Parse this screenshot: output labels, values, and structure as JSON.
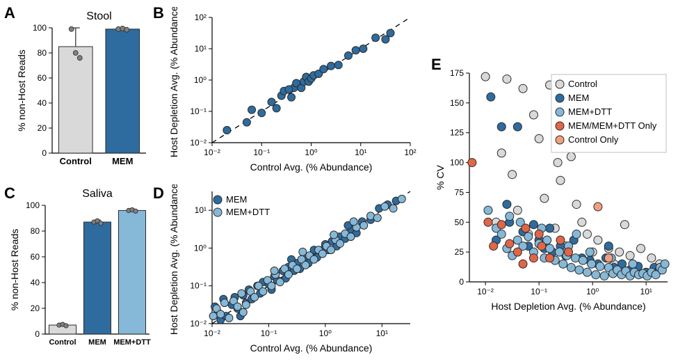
{
  "colors": {
    "control_bar": "#d9d9d9",
    "mem_bar": "#2e6b9e",
    "memdtt_bar": "#86b8d8",
    "point_edge": "#2b2b2b",
    "point_control": "#d9d9d9",
    "point_mem": "#2e6b9e",
    "point_memdtt": "#86b8d8",
    "point_memonly": "#e06647",
    "point_ctrlonly": "#f0a080",
    "errorbar": "#555555",
    "dotgrey": "#808080"
  },
  "panelA": {
    "label": "A",
    "title": "Stool",
    "ylabel": "% non-Host Reads",
    "categories": [
      "Control",
      "MEM"
    ],
    "bar_values": [
      85,
      99
    ],
    "bar_colors": [
      "#d9d9d9",
      "#2e6b9e"
    ],
    "errors": [
      15,
      0.5
    ],
    "dots": {
      "Control": [
        99,
        80,
        76
      ],
      "MEM": [
        99,
        99.5,
        98.5
      ]
    },
    "ylim": [
      0,
      100
    ],
    "ytick_step": 20,
    "cat_fontsize": 13,
    "label_fontsize": 14,
    "title_fontsize": 16
  },
  "panelB": {
    "label": "B",
    "xlabel": "Control Avg. (% Abundance)",
    "ylabel": "Host Depletion Avg. (% Abundance)",
    "xlim_log": [
      -2,
      2
    ],
    "ylim_log": [
      -2,
      2
    ],
    "ticks_log": [
      -2,
      -1,
      0,
      1,
      2
    ],
    "tick_labels": [
      "10⁻²",
      "10⁻¹",
      "10⁰",
      "10¹",
      "10²"
    ],
    "series": [
      {
        "name": "MEM",
        "color": "#2e6b9e",
        "points_log10": [
          [
            -1.7,
            -1.6
          ],
          [
            -1.3,
            -1.35
          ],
          [
            -1.2,
            -0.95
          ],
          [
            -1.0,
            -1.05
          ],
          [
            -0.8,
            -0.7
          ],
          [
            -0.6,
            -0.5
          ],
          [
            -0.55,
            -0.35
          ],
          [
            -0.4,
            -0.55
          ],
          [
            -0.35,
            -0.25
          ],
          [
            -0.3,
            -0.1
          ],
          [
            -0.2,
            -0.25
          ],
          [
            -0.15,
            -0.05
          ],
          [
            -0.1,
            0.1
          ],
          [
            -0.05,
            -0.05
          ],
          [
            0.0,
            0.05
          ],
          [
            0.05,
            0.15
          ],
          [
            0.15,
            0.2
          ],
          [
            0.25,
            0.35
          ],
          [
            0.4,
            0.45
          ],
          [
            0.55,
            0.48
          ],
          [
            0.75,
            0.78
          ],
          [
            0.9,
            0.95
          ],
          [
            1.05,
            1.0
          ],
          [
            1.3,
            1.35
          ],
          [
            1.5,
            1.3
          ],
          [
            1.6,
            1.5
          ],
          [
            -0.7,
            -0.9
          ],
          [
            -0.45,
            -0.3
          ]
        ]
      }
    ],
    "marker_radius": 5.5
  },
  "panelC": {
    "label": "C",
    "title": "Saliva",
    "ylabel": "% non-Host Reads",
    "categories": [
      "Control",
      "MEM",
      "MEM+DTT"
    ],
    "bar_values": [
      7,
      87,
      96
    ],
    "bar_colors": [
      "#d9d9d9",
      "#2e6b9e",
      "#86b8d8"
    ],
    "errors": [
      1,
      1.5,
      1
    ],
    "dots": {
      "Control": [
        7,
        7.5,
        6.5
      ],
      "MEM": [
        87,
        88,
        86
      ],
      "MEM+DTT": [
        96,
        96.5,
        95.5
      ]
    },
    "ylim": [
      0,
      100
    ],
    "ytick_step": 20,
    "cat_fontsize": 11
  },
  "panelD": {
    "label": "D",
    "xlabel": "Control Avg. (% Abundance)",
    "ylabel": "Host Depletion Avg. (% Abundance)",
    "xlim_log": [
      -2,
      1.5
    ],
    "ylim_log": [
      -2,
      1.5
    ],
    "xticks_log": [
      -2,
      -1,
      0,
      1
    ],
    "yticks_log": [
      -2,
      -1,
      0,
      1
    ],
    "tick_labels": [
      "10⁻²",
      "10⁻¹",
      "10⁰",
      "10¹"
    ],
    "legend": [
      {
        "label": "MEM",
        "color": "#2e6b9e"
      },
      {
        "label": "MEM+DTT",
        "color": "#86b8d8"
      }
    ],
    "series": [
      {
        "name": "MEM",
        "color": "#2e6b9e",
        "points_log10": [
          [
            -1.95,
            -1.55
          ],
          [
            -1.9,
            -1.7
          ],
          [
            -1.85,
            -1.9
          ],
          [
            -1.8,
            -1.35
          ],
          [
            -1.75,
            -1.8
          ],
          [
            -1.65,
            -1.5
          ],
          [
            -1.6,
            -1.3
          ],
          [
            -1.55,
            -1.6
          ],
          [
            -1.45,
            -1.25
          ],
          [
            -1.4,
            -1.45
          ],
          [
            -1.35,
            -1.1
          ],
          [
            -1.3,
            -1.35
          ],
          [
            -1.2,
            -1.0
          ],
          [
            -1.15,
            -1.2
          ],
          [
            -1.1,
            -0.9
          ],
          [
            -1.0,
            -0.95
          ],
          [
            -0.95,
            -1.1
          ],
          [
            -0.9,
            -0.75
          ],
          [
            -0.85,
            -0.85
          ],
          [
            -0.75,
            -0.6
          ],
          [
            -0.7,
            -0.8
          ],
          [
            -0.65,
            -0.5
          ],
          [
            -0.55,
            -0.6
          ],
          [
            -0.5,
            -0.4
          ],
          [
            -0.45,
            -0.55
          ],
          [
            -0.35,
            -0.25
          ],
          [
            -0.3,
            -0.4
          ],
          [
            -0.25,
            -0.2
          ],
          [
            -0.2,
            -0.05
          ],
          [
            -0.15,
            -0.25
          ],
          [
            -0.05,
            -0.05
          ],
          [
            0.0,
            0.1
          ],
          [
            0.05,
            -0.05
          ],
          [
            0.12,
            0.18
          ],
          [
            0.2,
            0.05
          ],
          [
            0.25,
            0.3
          ],
          [
            0.35,
            0.25
          ],
          [
            0.45,
            0.5
          ],
          [
            0.55,
            0.4
          ],
          [
            0.65,
            0.7
          ],
          [
            0.8,
            0.75
          ],
          [
            0.95,
            1.05
          ],
          [
            1.1,
            1.15
          ],
          [
            1.25,
            1.25
          ],
          [
            -1.5,
            -1.8
          ],
          [
            -0.6,
            -0.3
          ],
          [
            0.4,
            0.6
          ]
        ]
      },
      {
        "name": "MEM+DTT",
        "color": "#86b8d8",
        "points_log10": [
          [
            -1.98,
            -1.8
          ],
          [
            -1.92,
            -1.6
          ],
          [
            -1.85,
            -1.75
          ],
          [
            -1.78,
            -1.45
          ],
          [
            -1.7,
            -1.85
          ],
          [
            -1.62,
            -1.4
          ],
          [
            -1.55,
            -1.55
          ],
          [
            -1.48,
            -1.2
          ],
          [
            -1.4,
            -1.5
          ],
          [
            -1.32,
            -1.15
          ],
          [
            -1.25,
            -1.3
          ],
          [
            -1.18,
            -1.0
          ],
          [
            -1.1,
            -1.15
          ],
          [
            -1.02,
            -0.85
          ],
          [
            -0.95,
            -1.0
          ],
          [
            -0.88,
            -0.7
          ],
          [
            -0.8,
            -0.9
          ],
          [
            -0.72,
            -0.55
          ],
          [
            -0.65,
            -0.7
          ],
          [
            -0.58,
            -0.45
          ],
          [
            -0.5,
            -0.55
          ],
          [
            -0.42,
            -0.3
          ],
          [
            -0.35,
            -0.45
          ],
          [
            -0.28,
            -0.2
          ],
          [
            -0.2,
            -0.3
          ],
          [
            -0.12,
            -0.05
          ],
          [
            -0.05,
            -0.15
          ],
          [
            0.02,
            0.05
          ],
          [
            0.1,
            -0.05
          ],
          [
            0.18,
            0.22
          ],
          [
            0.26,
            0.12
          ],
          [
            0.35,
            0.38
          ],
          [
            0.45,
            0.3
          ],
          [
            0.55,
            0.55
          ],
          [
            0.68,
            0.6
          ],
          [
            0.8,
            0.85
          ],
          [
            0.92,
            0.8
          ],
          [
            1.05,
            1.1
          ],
          [
            1.2,
            1.05
          ],
          [
            1.35,
            1.3
          ],
          [
            -1.45,
            -1.7
          ],
          [
            -0.9,
            -0.6
          ],
          [
            -0.4,
            -0.1
          ],
          [
            0.5,
            0.7
          ],
          [
            0.15,
            0.35
          ]
        ]
      }
    ],
    "marker_radius": 5.5
  },
  "panelE": {
    "label": "E",
    "xlabel": "Host Depletion Avg. (% Abundance)",
    "ylabel": "% CV",
    "xlim_log": [
      -2.3,
      1.4
    ],
    "xticks_log": [
      -2,
      -1,
      0,
      1
    ],
    "xtick_labels": [
      "10⁻²",
      "10⁻¹",
      "10⁰",
      "10¹"
    ],
    "ylim": [
      0,
      175
    ],
    "ytick_step": 25,
    "legend": [
      {
        "label": "Control",
        "color": "#d9d9d9"
      },
      {
        "label": "MEM",
        "color": "#2e6b9e"
      },
      {
        "label": "MEM+DTT",
        "color": "#86b8d8"
      },
      {
        "label": "MEM/MEM+DTT Only",
        "color": "#e06647"
      },
      {
        "label": "Control Only",
        "color": "#f0a080"
      }
    ],
    "series": [
      {
        "name": "Control",
        "color": "#d9d9d9",
        "points": [
          [
            -2.0,
            172
          ],
          [
            -1.6,
            170
          ],
          [
            -1.3,
            162
          ],
          [
            -1.1,
            140
          ],
          [
            -1.0,
            120
          ],
          [
            -1.7,
            108
          ],
          [
            -0.8,
            165
          ],
          [
            -0.65,
            100
          ],
          [
            -0.6,
            85
          ],
          [
            -0.4,
            105
          ],
          [
            -0.9,
            70
          ],
          [
            -1.4,
            60
          ],
          [
            -1.8,
            50
          ],
          [
            -0.7,
            45
          ],
          [
            -0.3,
            65
          ],
          [
            -0.2,
            50
          ],
          [
            -0.1,
            40
          ],
          [
            0.1,
            35
          ],
          [
            0.3,
            28
          ],
          [
            0.5,
            25
          ],
          [
            0.7,
            22
          ],
          [
            0.9,
            28
          ],
          [
            1.1,
            20
          ],
          [
            1.25,
            15
          ],
          [
            -1.5,
            90
          ],
          [
            -1.2,
            40
          ],
          [
            -0.5,
            30
          ],
          [
            0.0,
            25
          ],
          [
            0.4,
            15
          ],
          [
            0.6,
            48
          ],
          [
            -0.35,
            135
          ],
          [
            -0.55,
            120
          ]
        ]
      },
      {
        "name": "MEM",
        "color": "#2e6b9e",
        "points": [
          [
            -1.9,
            155
          ],
          [
            -1.7,
            130
          ],
          [
            -1.4,
            130
          ],
          [
            -1.55,
            50
          ],
          [
            -1.3,
            42
          ],
          [
            -1.8,
            35
          ],
          [
            -1.2,
            30
          ],
          [
            -1.0,
            35
          ],
          [
            -0.9,
            28
          ],
          [
            -0.75,
            25
          ],
          [
            -0.6,
            30
          ],
          [
            -0.5,
            22
          ],
          [
            -0.35,
            35
          ],
          [
            -0.2,
            20
          ],
          [
            -0.05,
            18
          ],
          [
            0.1,
            15
          ],
          [
            0.25,
            20
          ],
          [
            0.4,
            12
          ],
          [
            0.55,
            15
          ],
          [
            0.7,
            10
          ],
          [
            0.85,
            13
          ],
          [
            1.0,
            8
          ],
          [
            1.15,
            12
          ],
          [
            1.25,
            10
          ],
          [
            -1.1,
            48
          ],
          [
            -0.8,
            45
          ],
          [
            -1.6,
            65
          ],
          [
            0.3,
            30
          ],
          [
            -0.15,
            130
          ]
        ]
      },
      {
        "name": "MEM+DTT",
        "color": "#86b8d8",
        "points": [
          [
            -1.95,
            60
          ],
          [
            -1.8,
            45
          ],
          [
            -1.7,
            40
          ],
          [
            -1.55,
            55
          ],
          [
            -1.4,
            35
          ],
          [
            -1.3,
            30
          ],
          [
            -1.2,
            38
          ],
          [
            -1.1,
            25
          ],
          [
            -1.0,
            32
          ],
          [
            -0.9,
            20
          ],
          [
            -0.8,
            28
          ],
          [
            -0.7,
            18
          ],
          [
            -0.62,
            25
          ],
          [
            -0.55,
            15
          ],
          [
            -0.48,
            22
          ],
          [
            -0.4,
            12
          ],
          [
            -0.32,
            20
          ],
          [
            -0.25,
            10
          ],
          [
            -0.18,
            18
          ],
          [
            -0.1,
            8
          ],
          [
            -0.02,
            15
          ],
          [
            0.06,
            6
          ],
          [
            0.14,
            13
          ],
          [
            0.22,
            5
          ],
          [
            0.3,
            12
          ],
          [
            0.38,
            7
          ],
          [
            0.46,
            10
          ],
          [
            0.54,
            6
          ],
          [
            0.62,
            9
          ],
          [
            0.7,
            5
          ],
          [
            0.78,
            8
          ],
          [
            0.86,
            6
          ],
          [
            0.94,
            7
          ],
          [
            1.02,
            5
          ],
          [
            1.1,
            8
          ],
          [
            1.18,
            6
          ],
          [
            1.26,
            12
          ],
          [
            -1.6,
            28
          ],
          [
            -0.85,
            35
          ],
          [
            -0.45,
            30
          ],
          [
            -0.05,
            25
          ],
          [
            0.35,
            20
          ],
          [
            0.75,
            15
          ],
          [
            -1.35,
            50
          ],
          [
            -0.95,
            45
          ],
          [
            1.3,
            10
          ],
          [
            1.35,
            15
          ],
          [
            -1.5,
            22
          ],
          [
            -0.3,
            40
          ]
        ]
      },
      {
        "name": "MEM/MEM+DTT Only",
        "color": "#e06647",
        "points": [
          [
            -2.25,
            100
          ],
          [
            -1.95,
            50
          ],
          [
            -1.85,
            30
          ],
          [
            -1.7,
            48
          ],
          [
            -1.55,
            32
          ],
          [
            -1.4,
            25
          ],
          [
            -1.25,
            45
          ],
          [
            -1.1,
            20
          ],
          [
            -0.95,
            30
          ],
          [
            -0.8,
            20
          ],
          [
            -0.6,
            35
          ],
          [
            -1.3,
            15
          ],
          [
            -0.45,
            25
          ],
          [
            -1.0,
            40
          ]
        ]
      },
      {
        "name": "Control Only",
        "color": "#f0a080",
        "points": [
          [
            0.1,
            63
          ],
          [
            0.3,
            20
          ]
        ]
      }
    ],
    "marker_radius": 6
  }
}
